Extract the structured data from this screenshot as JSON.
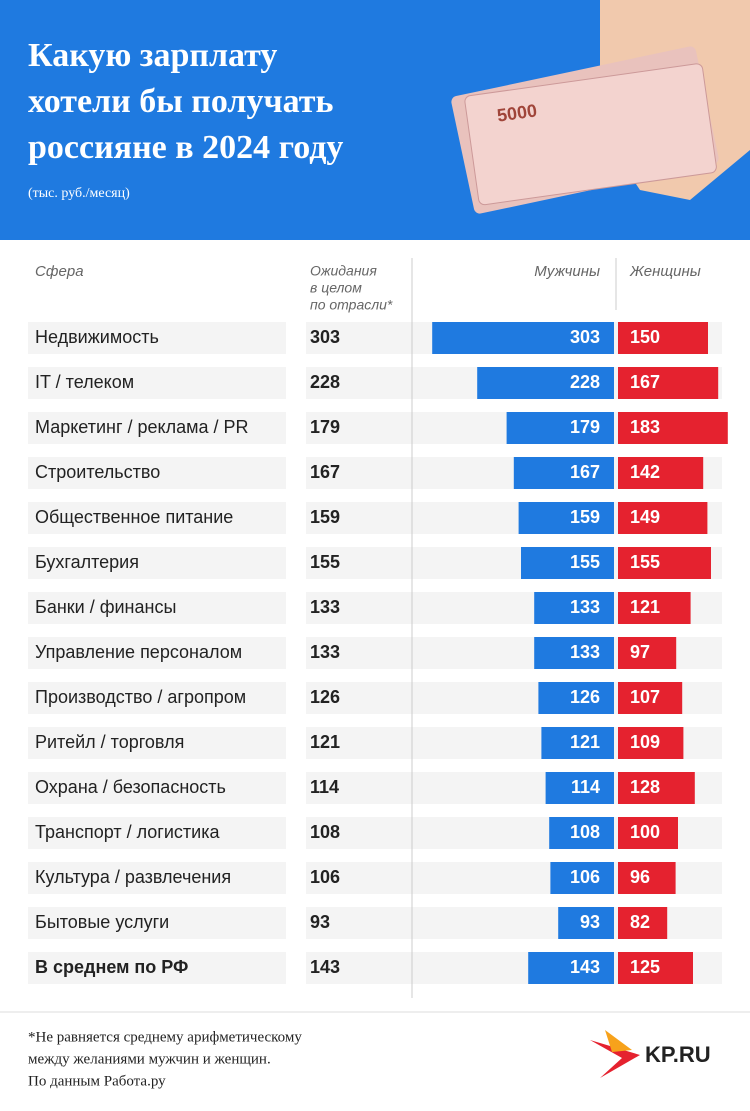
{
  "chart_data": {
    "type": "bar",
    "title": [
      "Какую зарплату",
      "хотели бы получать",
      "россияне в 2024 году"
    ],
    "subtitle": "(тыс. руб./месяц)",
    "column_headers": {
      "category": "Сфера",
      "overall": [
        "Ожидания",
        "в целом",
        "по отрасли*"
      ]
    },
    "categories": [
      "Недвижимость",
      "IT / телеком",
      "Маркетинг / реклама / PR",
      "Строительство",
      "Общественное питание",
      "Бухгалтерия",
      "Банки / финансы",
      "Управление персоналом",
      "Производство / агропром",
      "Ритейл / торговля",
      "Охрана / безопасность",
      "Транспорт / логистика",
      "Культура / развлечения",
      "Бытовые услуги",
      "В среднем по РФ"
    ],
    "overall": [
      303,
      228,
      179,
      167,
      159,
      155,
      133,
      133,
      126,
      121,
      114,
      108,
      106,
      93,
      143
    ],
    "series": [
      {
        "name": "Мужчины",
        "color": "#1f7ae0",
        "values": [
          303,
          228,
          179,
          167,
          159,
          155,
          133,
          133,
          126,
          121,
          114,
          108,
          106,
          93,
          143
        ]
      },
      {
        "name": "Женщины",
        "color": "#e5222f",
        "values": [
          150,
          167,
          183,
          142,
          149,
          155,
          121,
          97,
          107,
          109,
          128,
          100,
          96,
          82,
          125
        ]
      }
    ],
    "footnote": [
      "*Не равняется среднему арифметическому",
      "между желаниями мужчин и женщин.",
      "По данным Работа.ру"
    ],
    "logo": "KP.RU"
  }
}
